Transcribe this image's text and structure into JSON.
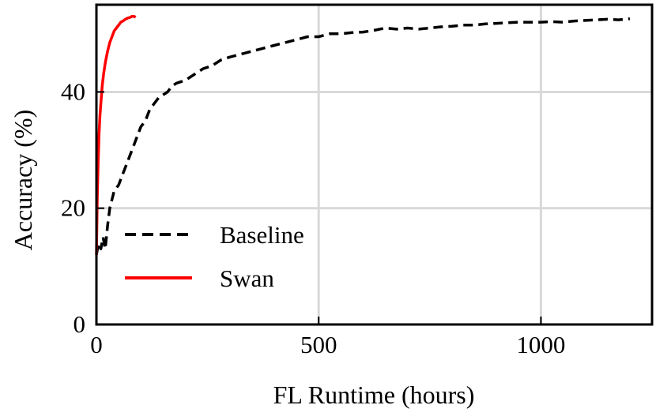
{
  "chart_data": {
    "type": "line",
    "title": "",
    "xlabel": "FL Runtime (hours)",
    "ylabel": "Accuracy (%)",
    "xlim": [
      0,
      1250
    ],
    "ylim": [
      0,
      55
    ],
    "xticks": [
      0,
      500,
      1000
    ],
    "yticks": [
      0,
      20,
      40
    ],
    "grid": true,
    "legend_position": "lower-left",
    "series": [
      {
        "name": "Baseline",
        "color": "#000000",
        "style": "dashed",
        "x": [
          0,
          5,
          10,
          15,
          20,
          25,
          30,
          40,
          50,
          60,
          70,
          80,
          90,
          100,
          110,
          120,
          130,
          140,
          150,
          160,
          170,
          180,
          200,
          220,
          240,
          260,
          280,
          300,
          325,
          350,
          375,
          400,
          425,
          450,
          475,
          500,
          525,
          550,
          575,
          600,
          625,
          650,
          675,
          700,
          725,
          750,
          775,
          800,
          825,
          850,
          875,
          900,
          925,
          950,
          975,
          1000,
          1025,
          1050,
          1075,
          1100,
          1125,
          1150,
          1175,
          1200
        ],
        "y": [
          12,
          14,
          13,
          15,
          13,
          17,
          20,
          23,
          24,
          26,
          28,
          30,
          32,
          34,
          35,
          37,
          38,
          39,
          39.5,
          40,
          41,
          41.5,
          42,
          43,
          44,
          44.5,
          45.5,
          46,
          46.5,
          47,
          47.5,
          48,
          48.5,
          49,
          49.5,
          49.5,
          50,
          50,
          50.2,
          50.3,
          50.6,
          51,
          50.8,
          51,
          50.8,
          51,
          51.2,
          51.3,
          51.5,
          51.5,
          51.7,
          51.8,
          51.9,
          52,
          52,
          52,
          52.1,
          52,
          52.2,
          52.3,
          52.4,
          52.5,
          52.4,
          52.6
        ]
      },
      {
        "name": "Swan",
        "color": "#ff0000",
        "style": "solid",
        "x": [
          0,
          2,
          4,
          6,
          8,
          10,
          13,
          16,
          20,
          25,
          30,
          35,
          40,
          45,
          50,
          55,
          60,
          65,
          70,
          75,
          80,
          85,
          88
        ],
        "y": [
          12,
          22,
          28,
          33,
          36,
          38,
          41,
          43,
          45,
          47,
          48.5,
          49.5,
          50.5,
          51,
          51.5,
          52,
          52.2,
          52.5,
          52.7,
          52.8,
          53,
          53,
          52.8
        ]
      }
    ]
  }
}
